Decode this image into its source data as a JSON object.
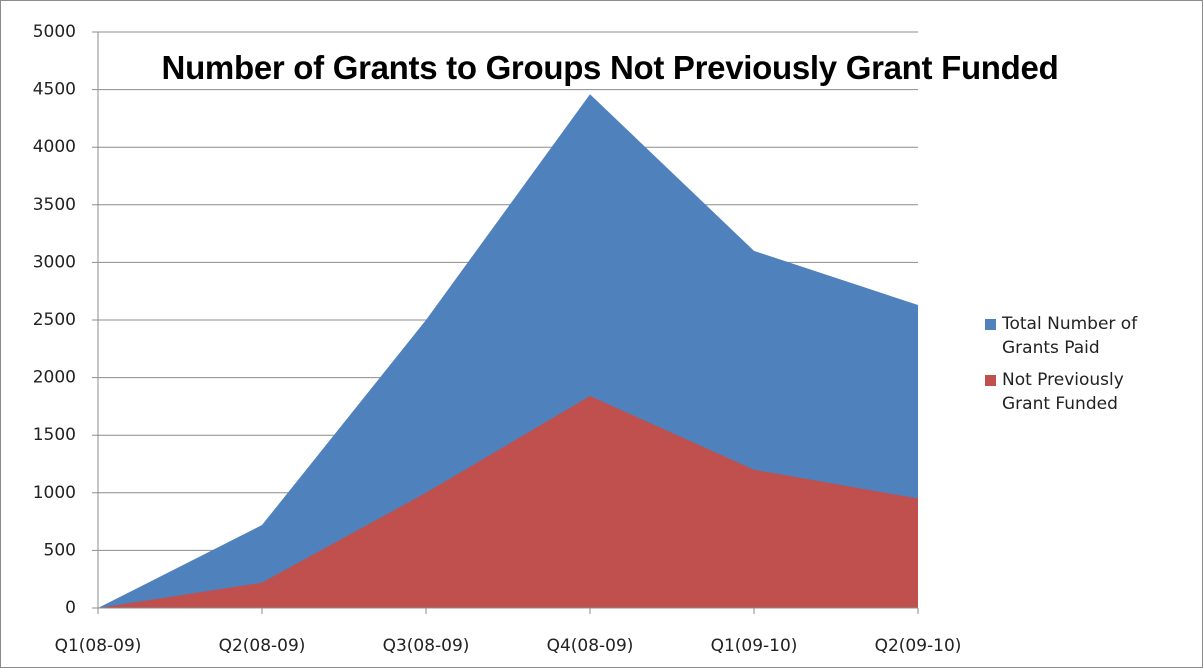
{
  "chart_data": {
    "type": "area",
    "title": "Number of Grants to Groups Not Previously Grant Funded",
    "categories": [
      "Q1(08-09)",
      "Q2(08-09)",
      "Q3(08-09)",
      "Q4(08-09)",
      "Q1(09-10)",
      "Q2(09-10)"
    ],
    "series": [
      {
        "name": "Total Number of Grants Paid",
        "color": "#4f81bd",
        "values": [
          0,
          720,
          2500,
          4460,
          3100,
          2630
        ]
      },
      {
        "name": "Not Previously Grant Funded",
        "color": "#c0504d",
        "values": [
          0,
          220,
          1000,
          1840,
          1200,
          950
        ]
      }
    ],
    "ylim": [
      0,
      5000
    ],
    "yticks": [
      0,
      500,
      1000,
      1500,
      2000,
      2500,
      3000,
      3500,
      4000,
      4500,
      5000
    ],
    "grid": true,
    "legend": "right"
  }
}
